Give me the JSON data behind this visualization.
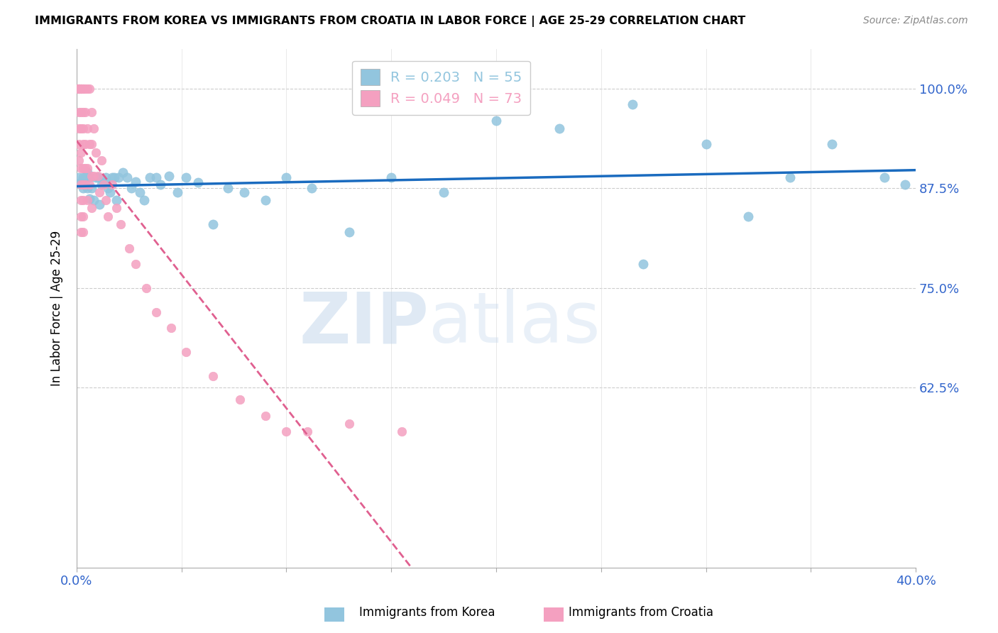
{
  "title": "IMMIGRANTS FROM KOREA VS IMMIGRANTS FROM CROATIA IN LABOR FORCE | AGE 25-29 CORRELATION CHART",
  "source": "Source: ZipAtlas.com",
  "ylabel": "In Labor Force | Age 25-29",
  "ytick_labels": [
    "100.0%",
    "87.5%",
    "75.0%",
    "62.5%"
  ],
  "ytick_values": [
    1.0,
    0.875,
    0.75,
    0.625
  ],
  "xmin": 0.0,
  "xmax": 0.4,
  "ymin": 0.4,
  "ymax": 1.05,
  "legend_label_korea": "Immigrants from Korea",
  "legend_label_croatia": "Immigrants from Croatia",
  "korea_color": "#92c5de",
  "croatia_color": "#f4a0c0",
  "trend_korea_color": "#1a6bbf",
  "trend_croatia_color": "#e06090",
  "watermark_zip": "ZIP",
  "watermark_atlas": "atlas",
  "korea_x": [
    0.001,
    0.002,
    0.003,
    0.003,
    0.004,
    0.005,
    0.005,
    0.006,
    0.006,
    0.007,
    0.008,
    0.009,
    0.01,
    0.011,
    0.012,
    0.013,
    0.014,
    0.015,
    0.016,
    0.017,
    0.018,
    0.019,
    0.02,
    0.022,
    0.024,
    0.026,
    0.028,
    0.03,
    0.032,
    0.035,
    0.038,
    0.04,
    0.044,
    0.048,
    0.052,
    0.058,
    0.065,
    0.072,
    0.08,
    0.09,
    0.1,
    0.112,
    0.13,
    0.15,
    0.175,
    0.2,
    0.23,
    0.265,
    0.3,
    0.34,
    0.27,
    0.32,
    0.36,
    0.385,
    0.395
  ],
  "korea_y": [
    0.889,
    0.882,
    0.889,
    0.875,
    0.889,
    0.875,
    0.895,
    0.862,
    0.889,
    0.875,
    0.86,
    0.889,
    0.889,
    0.855,
    0.88,
    0.882,
    0.889,
    0.875,
    0.87,
    0.889,
    0.889,
    0.86,
    0.889,
    0.895,
    0.889,
    0.875,
    0.883,
    0.87,
    0.86,
    0.889,
    0.889,
    0.88,
    0.89,
    0.87,
    0.889,
    0.882,
    0.83,
    0.875,
    0.87,
    0.86,
    0.889,
    0.875,
    0.82,
    0.889,
    0.87,
    0.96,
    0.95,
    0.98,
    0.93,
    0.889,
    0.78,
    0.84,
    0.93,
    0.889,
    0.88
  ],
  "croatia_x": [
    0.001,
    0.001,
    0.001,
    0.001,
    0.001,
    0.001,
    0.001,
    0.001,
    0.001,
    0.001,
    0.002,
    0.002,
    0.002,
    0.002,
    0.002,
    0.002,
    0.002,
    0.002,
    0.002,
    0.002,
    0.002,
    0.002,
    0.003,
    0.003,
    0.003,
    0.003,
    0.003,
    0.003,
    0.003,
    0.003,
    0.003,
    0.003,
    0.004,
    0.004,
    0.004,
    0.004,
    0.004,
    0.005,
    0.005,
    0.005,
    0.005,
    0.006,
    0.006,
    0.006,
    0.007,
    0.007,
    0.007,
    0.007,
    0.008,
    0.008,
    0.009,
    0.01,
    0.011,
    0.012,
    0.013,
    0.014,
    0.015,
    0.017,
    0.019,
    0.021,
    0.025,
    0.028,
    0.033,
    0.038,
    0.045,
    0.052,
    0.065,
    0.078,
    0.09,
    0.1,
    0.11,
    0.13,
    0.155
  ],
  "croatia_y": [
    1.0,
    1.0,
    1.0,
    1.0,
    1.0,
    1.0,
    0.97,
    0.95,
    0.93,
    0.91,
    1.0,
    1.0,
    1.0,
    1.0,
    0.97,
    0.95,
    0.92,
    0.9,
    0.88,
    0.86,
    0.84,
    0.82,
    1.0,
    1.0,
    0.97,
    0.95,
    0.93,
    0.9,
    0.88,
    0.86,
    0.84,
    0.82,
    1.0,
    0.97,
    0.93,
    0.9,
    0.88,
    1.0,
    0.95,
    0.9,
    0.86,
    1.0,
    0.93,
    0.88,
    0.97,
    0.93,
    0.89,
    0.85,
    0.95,
    0.89,
    0.92,
    0.89,
    0.87,
    0.91,
    0.88,
    0.86,
    0.84,
    0.88,
    0.85,
    0.83,
    0.8,
    0.78,
    0.75,
    0.72,
    0.7,
    0.67,
    0.64,
    0.61,
    0.59,
    0.57,
    0.57,
    0.58,
    0.57
  ]
}
